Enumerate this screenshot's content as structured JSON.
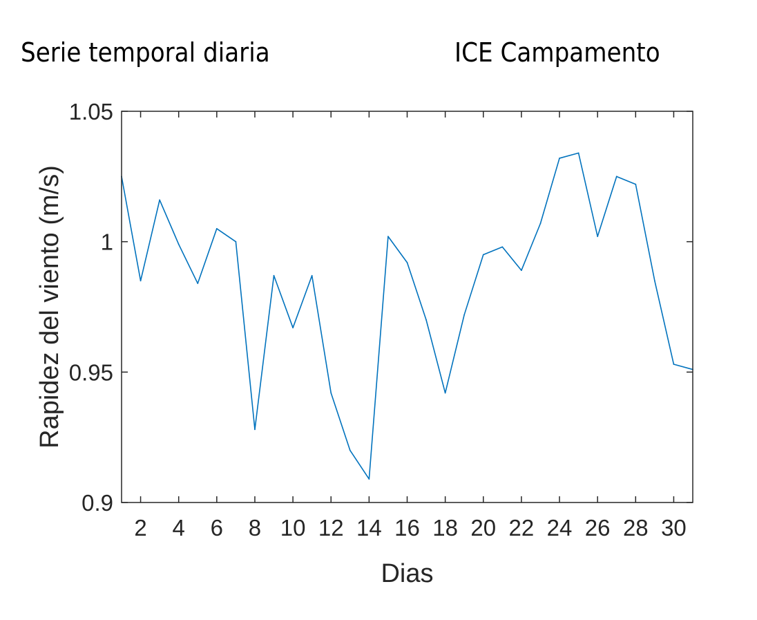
{
  "header": {
    "left_title": "Serie temporal diaria",
    "right_title": "ICE Campamento"
  },
  "chart_data": {
    "type": "line",
    "title": "",
    "xlabel": "Dias",
    "ylabel": "Rapidez del viento (m/s)",
    "xlim": [
      1,
      31
    ],
    "ylim": [
      0.9,
      1.05
    ],
    "xticks": [
      2,
      4,
      6,
      8,
      10,
      12,
      14,
      16,
      18,
      20,
      22,
      24,
      26,
      28,
      30
    ],
    "yticks": [
      0.9,
      0.95,
      1,
      1.05
    ],
    "ytick_labels": [
      "0.9",
      "0.95",
      "1",
      "1.05"
    ],
    "grid": false,
    "line_color": "#0072BD",
    "series": [
      {
        "x": [
          1,
          2,
          3,
          4,
          5,
          6,
          7,
          8,
          9,
          10,
          11,
          12,
          13,
          14,
          15,
          16,
          17,
          18,
          19,
          20,
          21,
          22,
          23,
          24,
          25,
          26,
          27,
          28,
          29,
          30,
          31
        ],
        "values": [
          1.025,
          0.985,
          1.016,
          0.999,
          0.984,
          1.005,
          1.0,
          0.928,
          0.987,
          0.967,
          0.987,
          0.942,
          0.92,
          0.909,
          1.002,
          0.992,
          0.97,
          0.942,
          0.972,
          0.995,
          0.998,
          0.989,
          1.007,
          1.032,
          1.034,
          1.002,
          1.025,
          1.022,
          0.985,
          0.953,
          0.951
        ]
      }
    ]
  }
}
